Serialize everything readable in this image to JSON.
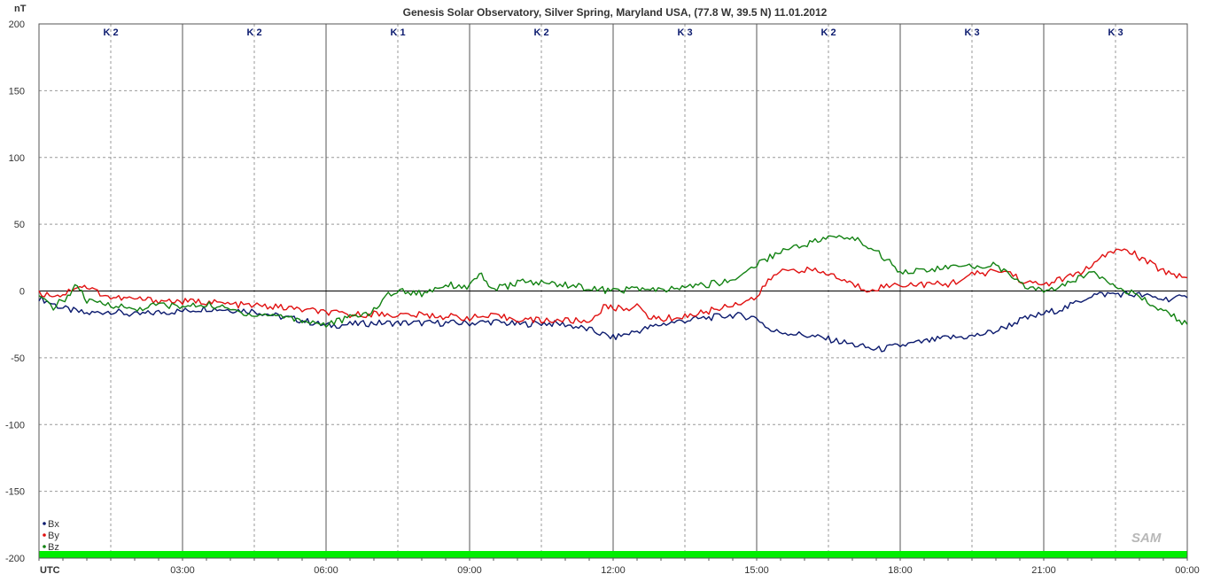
{
  "chart_data": {
    "type": "line",
    "title": "Genesis Solar Observatory, Silver Spring, Maryland USA, (77.8 W, 39.5 N)  11.01.2012",
    "ylabel": "nT",
    "xlabel": "UTC",
    "ylim": [
      -200,
      200
    ],
    "xlim_hours": [
      0,
      24
    ],
    "y_ticks": [
      "200",
      "150",
      "100",
      "50",
      "0",
      "-50",
      "-100",
      "-150",
      "-200"
    ],
    "x_ticks": [
      "03:00",
      "06:00",
      "09:00",
      "12:00",
      "15:00",
      "18:00",
      "21:00",
      "00:00"
    ],
    "grid": true,
    "legend_position": "bottom-left",
    "k_index": [
      "K 2",
      "K 2",
      "K 1",
      "K 2",
      "K 3",
      "K 2",
      "K 3",
      "K 3"
    ],
    "series": [
      {
        "name": "Bx",
        "color": "#0b1a6e",
        "points": [
          [
            0,
            -5
          ],
          [
            0.5,
            -13
          ],
          [
            1,
            -17
          ],
          [
            1.5,
            -15
          ],
          [
            2,
            -18
          ],
          [
            2.5,
            -16
          ],
          [
            3,
            -15
          ],
          [
            3.5,
            -13
          ],
          [
            4,
            -14
          ],
          [
            4.5,
            -15
          ],
          [
            5,
            -19
          ],
          [
            5.5,
            -22
          ],
          [
            6,
            -26
          ],
          [
            6.5,
            -25
          ],
          [
            7,
            -24
          ],
          [
            7.5,
            -24
          ],
          [
            8,
            -24
          ],
          [
            8.5,
            -24
          ],
          [
            9,
            -24
          ],
          [
            9.5,
            -23
          ],
          [
            10,
            -25
          ],
          [
            10.5,
            -24
          ],
          [
            11,
            -25
          ],
          [
            11.5,
            -29
          ],
          [
            12,
            -35
          ],
          [
            12.5,
            -30
          ],
          [
            13,
            -25
          ],
          [
            13.5,
            -22
          ],
          [
            14,
            -20
          ],
          [
            14.5,
            -18
          ],
          [
            15,
            -20
          ],
          [
            15.3,
            -30
          ],
          [
            15.6,
            -31
          ],
          [
            16,
            -33
          ],
          [
            16.5,
            -36
          ],
          [
            17,
            -40
          ],
          [
            17.5,
            -44
          ],
          [
            18,
            -41
          ],
          [
            18.5,
            -38
          ],
          [
            19,
            -35
          ],
          [
            19.5,
            -34
          ],
          [
            20,
            -30
          ],
          [
            20.5,
            -22
          ],
          [
            21,
            -17
          ],
          [
            21.5,
            -12
          ],
          [
            22,
            -3
          ],
          [
            22.5,
            -2
          ],
          [
            23,
            -3
          ],
          [
            23.5,
            -6
          ],
          [
            24,
            -5
          ]
        ]
      },
      {
        "name": "By",
        "color": "#e01010",
        "points": [
          [
            0,
            -2
          ],
          [
            0.5,
            -3
          ],
          [
            0.8,
            4
          ],
          [
            1,
            3
          ],
          [
            1.5,
            -5
          ],
          [
            2,
            -6
          ],
          [
            2.5,
            -7
          ],
          [
            3,
            -8
          ],
          [
            3.5,
            -8
          ],
          [
            4,
            -10
          ],
          [
            4.5,
            -11
          ],
          [
            5,
            -12
          ],
          [
            5.5,
            -14
          ],
          [
            6,
            -16
          ],
          [
            6.5,
            -18
          ],
          [
            7,
            -17
          ],
          [
            7.5,
            -18
          ],
          [
            8,
            -18
          ],
          [
            8.5,
            -19
          ],
          [
            9,
            -20
          ],
          [
            9.5,
            -19
          ],
          [
            10,
            -21
          ],
          [
            10.5,
            -22
          ],
          [
            11,
            -22
          ],
          [
            11.5,
            -23
          ],
          [
            11.8,
            -12
          ],
          [
            12,
            -13
          ],
          [
            12.5,
            -12
          ],
          [
            12.8,
            -20
          ],
          [
            13,
            -21
          ],
          [
            13.5,
            -19
          ],
          [
            14,
            -15
          ],
          [
            14.5,
            -10
          ],
          [
            15,
            -5
          ],
          [
            15.3,
            10
          ],
          [
            15.6,
            16
          ],
          [
            16,
            16
          ],
          [
            16.5,
            13
          ],
          [
            17,
            5
          ],
          [
            17.3,
            1
          ],
          [
            17.6,
            3
          ],
          [
            18,
            5
          ],
          [
            18.5,
            5
          ],
          [
            19,
            5
          ],
          [
            19.5,
            12
          ],
          [
            20,
            15
          ],
          [
            20.3,
            14
          ],
          [
            20.6,
            6
          ],
          [
            21,
            5
          ],
          [
            21.5,
            10
          ],
          [
            22,
            18
          ],
          [
            22.4,
            30
          ],
          [
            22.8,
            30
          ],
          [
            23,
            25
          ],
          [
            23.5,
            15
          ],
          [
            24,
            10
          ]
        ]
      },
      {
        "name": "Bz",
        "color": "#128212",
        "points": [
          [
            0,
            -5
          ],
          [
            0.3,
            -12
          ],
          [
            0.6,
            -4
          ],
          [
            0.8,
            5
          ],
          [
            1,
            -8
          ],
          [
            1.5,
            -10
          ],
          [
            2,
            -14
          ],
          [
            2.5,
            -10
          ],
          [
            3,
            -12
          ],
          [
            3.5,
            -10
          ],
          [
            4,
            -14
          ],
          [
            4.5,
            -18
          ],
          [
            5,
            -18
          ],
          [
            5.5,
            -22
          ],
          [
            6,
            -25
          ],
          [
            6.5,
            -20
          ],
          [
            7,
            -15
          ],
          [
            7.3,
            -2
          ],
          [
            7.6,
            0
          ],
          [
            8,
            -2
          ],
          [
            8.5,
            5
          ],
          [
            9,
            3
          ],
          [
            9.2,
            14
          ],
          [
            9.4,
            2
          ],
          [
            9.8,
            3
          ],
          [
            10,
            7
          ],
          [
            10.5,
            6
          ],
          [
            11,
            5
          ],
          [
            11.5,
            2
          ],
          [
            12,
            0
          ],
          [
            12.5,
            2
          ],
          [
            13,
            0
          ],
          [
            13.5,
            3
          ],
          [
            14,
            5
          ],
          [
            14.5,
            8
          ],
          [
            15,
            20
          ],
          [
            15.5,
            30
          ],
          [
            16,
            35
          ],
          [
            16.5,
            40
          ],
          [
            17,
            40
          ],
          [
            17.5,
            30
          ],
          [
            18,
            15
          ],
          [
            18.5,
            15
          ],
          [
            19,
            18
          ],
          [
            19.5,
            18
          ],
          [
            20,
            20
          ],
          [
            20.5,
            5
          ],
          [
            21,
            0
          ],
          [
            21.5,
            5
          ],
          [
            22,
            15
          ],
          [
            22.5,
            5
          ],
          [
            23,
            -5
          ],
          [
            23.5,
            -15
          ],
          [
            24,
            -25
          ]
        ]
      }
    ]
  },
  "colors": {
    "axis": "#555555",
    "grid": "#999999",
    "zero_line": "#000000",
    "hour_band": "#00ee00",
    "logo": "#b8b8b8"
  },
  "logo_text": "SAM"
}
